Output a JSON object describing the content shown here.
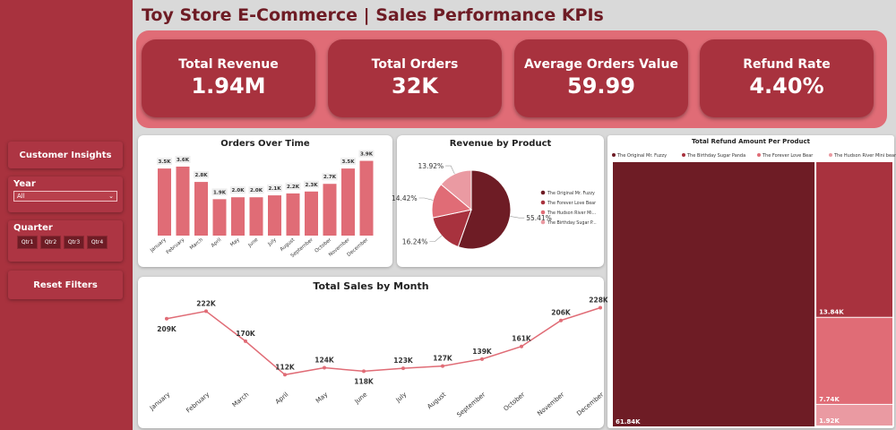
{
  "title": "Toy Store E-Commerce | Sales Performance KPIs",
  "sidebar": {
    "customer_insights": "Customer Insights",
    "year_label": "Year",
    "year_value": "All",
    "quarter_label": "Quarter",
    "quarters": [
      "Qtr1",
      "Qtr2",
      "Qtr3",
      "Qtr4"
    ],
    "reset": "Reset Filters"
  },
  "kpis": [
    {
      "label": "Total Revenue",
      "value": "1.94M"
    },
    {
      "label": "Total Orders",
      "value": "32K"
    },
    {
      "label": "Average Orders Value",
      "value": "59.99"
    },
    {
      "label": "Refund Rate",
      "value": "4.40%"
    }
  ],
  "colors": {
    "dark": "#6e1c25",
    "mid": "#a8323e",
    "bar": "#e06c76",
    "light": "#ea9aa2"
  },
  "chart_data": [
    {
      "type": "bar",
      "title": "Orders Over Time",
      "categories": [
        "January",
        "February",
        "March",
        "April",
        "May",
        "June",
        "July",
        "August",
        "September",
        "October",
        "November",
        "December"
      ],
      "values": [
        3.5,
        3.6,
        2.8,
        1.9,
        2.0,
        2.0,
        2.1,
        2.2,
        2.3,
        2.7,
        3.5,
        3.9
      ],
      "labels": [
        "3.5K",
        "3.6K",
        "2.8K",
        "1.9K",
        "2.0K",
        "2.0K",
        "2.1K",
        "2.2K",
        "2.3K",
        "2.7K",
        "3.5K",
        "3.9K"
      ],
      "ylim": [
        0,
        4.3
      ]
    },
    {
      "type": "pie",
      "title": "Revenue by Product",
      "series": [
        {
          "name": "The Original Mr. Fuzzy",
          "value": 55.41,
          "label": "55.41%",
          "color": "#6e1c25"
        },
        {
          "name": "The Forever Love Bear",
          "value": 16.24,
          "label": "16.24%",
          "color": "#a8323e"
        },
        {
          "name": "The Hudson River Mi...",
          "value": 14.42,
          "label": "14.42%",
          "color": "#e06c76"
        },
        {
          "name": "The Birthday Sugar P...",
          "value": 13.92,
          "label": "13.92%",
          "color": "#ea9aa2"
        }
      ]
    },
    {
      "type": "line",
      "title": "Total Sales by Month",
      "categories": [
        "January",
        "February",
        "March",
        "April",
        "May",
        "June",
        "July",
        "August",
        "September",
        "October",
        "November",
        "December"
      ],
      "values": [
        209,
        222,
        170,
        112,
        124,
        118,
        123,
        127,
        139,
        161,
        206,
        228
      ],
      "labels": [
        "209K",
        "222K",
        "170K",
        "112K",
        "124K",
        "118K",
        "123K",
        "127K",
        "139K",
        "161K",
        "206K",
        "228K"
      ],
      "ylim": [
        100,
        235
      ]
    },
    {
      "type": "treemap",
      "title": "Total Refund Amount Per Product",
      "legend": [
        "The Original Mr. Fuzzy",
        "The Birthday Sugar Panda",
        "The Forever Love Bear",
        "The Hudson River Mini bear"
      ],
      "values": [
        61.84,
        13.84,
        7.74,
        1.92
      ],
      "labels": [
        "61.84K",
        "13.84K",
        "7.74K",
        "1.92K"
      ],
      "colors": [
        "#6e1c25",
        "#a8323e",
        "#e06c76",
        "#ea9aa2"
      ]
    }
  ]
}
